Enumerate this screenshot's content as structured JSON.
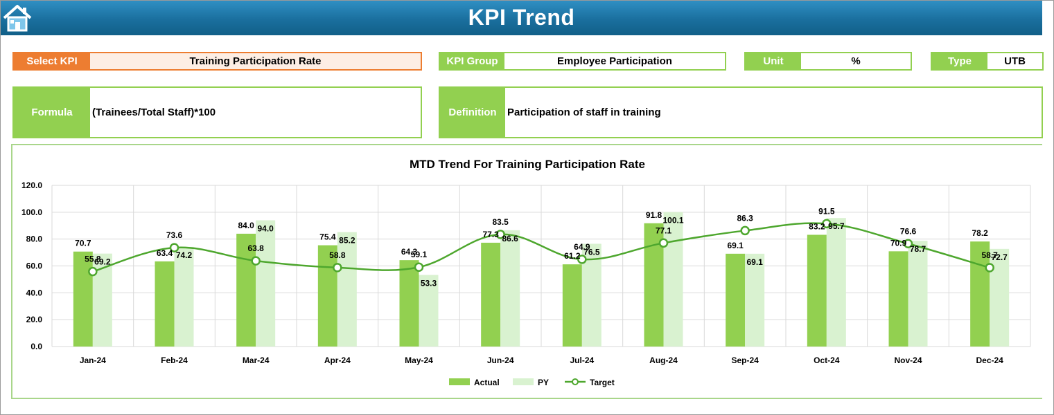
{
  "header": {
    "title": "KPI Trend",
    "home_icon": "home-icon"
  },
  "select_kpi": {
    "label": "Select KPI",
    "value": "Training Participation Rate"
  },
  "kpi_group": {
    "label": "KPI Group",
    "value": "Employee Participation"
  },
  "unit": {
    "label": "Unit",
    "value": "%"
  },
  "type": {
    "label": "Type",
    "value": "UTB"
  },
  "formula": {
    "label": "Formula",
    "value": "(Trainees/Total Staff)*100"
  },
  "definition": {
    "label": "Definition",
    "value": "Participation of staff in training"
  },
  "colors": {
    "header": "#1a6f9e",
    "accent_orange": "#ed7d31",
    "green": "#92d050",
    "pale_green": "#d9f2d0",
    "target_line": "#4ea72e"
  },
  "chart_data": {
    "type": "bar",
    "title": "MTD Trend For Training Participation Rate",
    "categories": [
      "Jan-24",
      "Feb-24",
      "Mar-24",
      "Apr-24",
      "May-24",
      "Jun-24",
      "Jul-24",
      "Aug-24",
      "Sep-24",
      "Oct-24",
      "Nov-24",
      "Dec-24"
    ],
    "series": [
      {
        "name": "Actual",
        "kind": "bar",
        "color": "#92d050",
        "values": [
          70.7,
          63.4,
          84.0,
          75.4,
          64.3,
          77.3,
          61.2,
          91.8,
          69.1,
          83.2,
          70.9,
          78.2
        ]
      },
      {
        "name": "PY",
        "kind": "bar",
        "color": "#d9f2d0",
        "values": [
          69.2,
          74.2,
          94.0,
          85.2,
          53.3,
          86.6,
          76.5,
          100.1,
          69.1,
          95.7,
          78.7,
          72.7
        ]
      },
      {
        "name": "Target",
        "kind": "line",
        "color": "#4ea72e",
        "values": [
          55.8,
          73.6,
          63.8,
          58.8,
          59.1,
          83.5,
          64.9,
          77.1,
          86.3,
          91.5,
          76.6,
          58.7
        ]
      }
    ],
    "yticks": [
      "0.0",
      "20.0",
      "40.0",
      "60.0",
      "80.0",
      "100.0",
      "120.0"
    ],
    "ylim": [
      0,
      120
    ],
    "grid": true,
    "legend": "bottom"
  }
}
